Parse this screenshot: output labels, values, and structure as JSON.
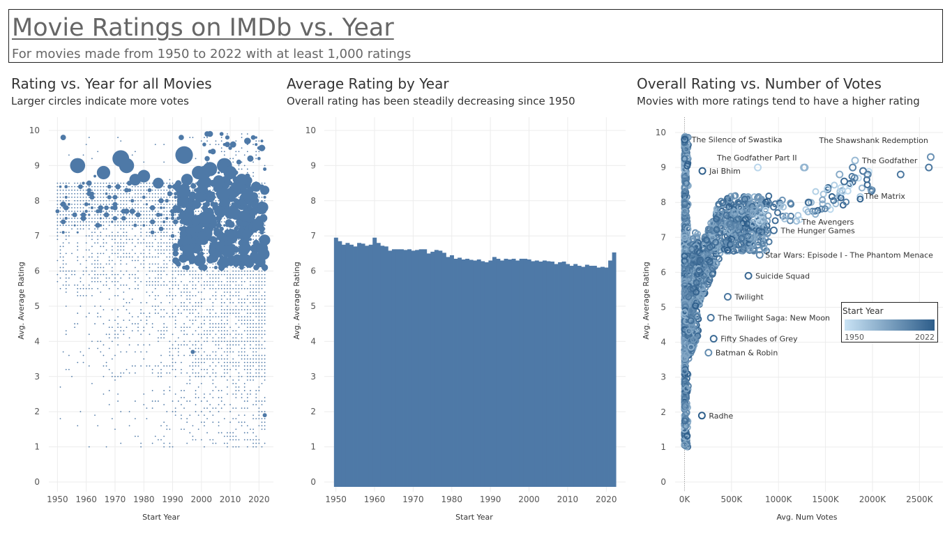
{
  "header": {
    "title": "Movie Ratings on IMDb vs. Year",
    "subtitle": "For movies made from 1950 to 2022 with at least 1,000 ratings"
  },
  "panels": {
    "scatter_year": {
      "title": "Rating vs. Year for all Movies",
      "subtitle": "Larger circles indicate more votes"
    },
    "avg_by_year": {
      "title": "Average Rating by Year",
      "subtitle": "Overall rating has been steadily decreasing since 1950"
    },
    "rating_votes": {
      "title": "Overall Rating vs. Number of Votes",
      "subtitle": "Movies with more ratings tend to have a higher rating"
    }
  },
  "legend": {
    "title": "Start Year",
    "min_label": "1950",
    "max_label": "2022"
  },
  "colors": {
    "bar": "#4e79a7",
    "point": "#4e79a7",
    "light": "#c9e3f5",
    "dark": "#2d5d8a",
    "grid": "#ececec"
  },
  "chart_data": [
    {
      "type": "scatter",
      "xlabel": "Start Year",
      "ylabel": "Avg. Average Rating",
      "xlim": [
        1947,
        2025
      ],
      "ylim": [
        0,
        10
      ],
      "xticks": [
        1950,
        1960,
        1970,
        1980,
        1990,
        2000,
        2010,
        2020
      ],
      "yticks": [
        0,
        1,
        2,
        3,
        4,
        5,
        6,
        7,
        8,
        9,
        10
      ],
      "encoding": "circle size = number of votes",
      "highlights": [
        {
          "x": 1957,
          "y": 9.0
        },
        {
          "x": 1966,
          "y": 8.8
        },
        {
          "x": 1972,
          "y": 9.2
        },
        {
          "x": 1974,
          "y": 9.0
        },
        {
          "x": 1994,
          "y": 9.3
        },
        {
          "x": 1999,
          "y": 8.8
        },
        {
          "x": 2001,
          "y": 8.8
        },
        {
          "x": 2003,
          "y": 8.9
        },
        {
          "x": 2008,
          "y": 9.0
        },
        {
          "x": 2010,
          "y": 8.8
        },
        {
          "x": 2014,
          "y": 8.6
        },
        {
          "x": 2012,
          "y": 8.4
        },
        {
          "x": 1977,
          "y": 8.6
        },
        {
          "x": 1980,
          "y": 8.7
        },
        {
          "x": 1985,
          "y": 8.5
        },
        {
          "x": 1995,
          "y": 8.6
        },
        {
          "x": 2006,
          "y": 8.5
        },
        {
          "x": 2019,
          "y": 8.4
        },
        {
          "x": 2022,
          "y": 8.3
        },
        {
          "x": 2022,
          "y": 1.9
        },
        {
          "x": 1997,
          "y": 3.7
        }
      ]
    },
    {
      "type": "bar",
      "xlabel": "Start Year",
      "ylabel": "Avg. Average Rating",
      "xlim": [
        1947,
        2025
      ],
      "ylim": [
        0,
        10
      ],
      "xticks": [
        1950,
        1960,
        1970,
        1980,
        1990,
        2000,
        2010,
        2020
      ],
      "yticks": [
        0,
        1,
        2,
        3,
        4,
        5,
        6,
        7,
        8,
        9,
        10
      ],
      "x": [
        1950,
        1951,
        1952,
        1953,
        1954,
        1955,
        1956,
        1957,
        1958,
        1959,
        1960,
        1961,
        1962,
        1963,
        1964,
        1965,
        1966,
        1967,
        1968,
        1969,
        1970,
        1971,
        1972,
        1973,
        1974,
        1975,
        1976,
        1977,
        1978,
        1979,
        1980,
        1981,
        1982,
        1983,
        1984,
        1985,
        1986,
        1987,
        1988,
        1989,
        1990,
        1991,
        1992,
        1993,
        1994,
        1995,
        1996,
        1997,
        1998,
        1999,
        2000,
        2001,
        2002,
        2003,
        2004,
        2005,
        2006,
        2007,
        2008,
        2009,
        2010,
        2011,
        2012,
        2013,
        2014,
        2015,
        2016,
        2017,
        2018,
        2019,
        2020,
        2021,
        2022
      ],
      "values": [
        6.95,
        6.85,
        6.75,
        6.8,
        6.75,
        6.7,
        6.8,
        6.78,
        6.72,
        6.75,
        6.95,
        6.8,
        6.72,
        6.7,
        6.58,
        6.62,
        6.62,
        6.62,
        6.6,
        6.62,
        6.58,
        6.6,
        6.62,
        6.62,
        6.5,
        6.55,
        6.6,
        6.58,
        6.52,
        6.4,
        6.45,
        6.35,
        6.38,
        6.33,
        6.35,
        6.32,
        6.3,
        6.33,
        6.28,
        6.25,
        6.3,
        6.4,
        6.35,
        6.3,
        6.35,
        6.33,
        6.35,
        6.3,
        6.35,
        6.35,
        6.33,
        6.28,
        6.3,
        6.27,
        6.3,
        6.28,
        6.27,
        6.2,
        6.25,
        6.27,
        6.2,
        6.15,
        6.2,
        6.15,
        6.12,
        6.18,
        6.15,
        6.15,
        6.1,
        6.12,
        6.1,
        6.3,
        6.53
      ]
    },
    {
      "type": "scatter",
      "xlabel": "Avg. Num Votes",
      "ylabel": "Avg. Average Rating",
      "xlim": [
        -100,
        2750
      ],
      "ylim": [
        0,
        10
      ],
      "xticks": [
        0,
        500,
        1000,
        1500,
        2000,
        2500
      ],
      "xtick_labels": [
        "0K",
        "500K",
        "1000K",
        "1500K",
        "2000K",
        "2500K"
      ],
      "yticks": [
        0,
        1,
        2,
        3,
        4,
        5,
        6,
        7,
        8,
        9,
        10
      ],
      "color_encoding": "Start Year 1950–2022",
      "labeled_points": [
        {
          "label": "The Shawshank Redemption",
          "x": 2620,
          "y": 9.3,
          "year": 1994
        },
        {
          "label": "The Godfather",
          "x": 1815,
          "y": 9.2,
          "year": 1972
        },
        {
          "label": "The Matrix",
          "x": 1810,
          "y": 8.7,
          "year": 1999
        },
        {
          "label": "The Avengers",
          "x": 1320,
          "y": 8.0,
          "year": 2012
        },
        {
          "label": "The Hunger Games",
          "x": 950,
          "y": 7.2,
          "year": 2012
        },
        {
          "label": "Star Wars: Episode I - The Phantom Menace",
          "x": 800,
          "y": 6.5,
          "year": 1999
        },
        {
          "label": "Suicide Squad",
          "x": 680,
          "y": 5.9,
          "year": 2016
        },
        {
          "label": "Twilight",
          "x": 460,
          "y": 5.3,
          "year": 2008
        },
        {
          "label": "The Twilight Saga: New Moon",
          "x": 280,
          "y": 4.7,
          "year": 2009
        },
        {
          "label": "Fifty Shades of Grey",
          "x": 310,
          "y": 4.1,
          "year": 2015
        },
        {
          "label": "Batman & Robin",
          "x": 255,
          "y": 3.7,
          "year": 1997
        },
        {
          "label": "Radhe",
          "x": 185,
          "y": 1.9,
          "year": 2021
        },
        {
          "label": "The Silence of Swastika",
          "x": 2,
          "y": 9.8,
          "year": 2021
        },
        {
          "label": "The Godfather Part II",
          "x": 1270,
          "y": 9.0,
          "year": 1974
        },
        {
          "label": "Jai Bhim",
          "x": 190,
          "y": 8.9,
          "year": 2021
        }
      ],
      "other_points": [
        {
          "x": 2600,
          "y": 9.0,
          "year": 2008
        },
        {
          "x": 1900,
          "y": 8.9,
          "year": 2010
        },
        {
          "x": 1950,
          "y": 8.8,
          "year": 2003
        },
        {
          "x": 2300,
          "y": 8.8,
          "year": 2008
        },
        {
          "x": 1790,
          "y": 9.0,
          "year": 2001
        },
        {
          "x": 1700,
          "y": 8.6,
          "year": 2014
        },
        {
          "x": 1650,
          "y": 8.8,
          "year": 1980
        },
        {
          "x": 1280,
          "y": 9.0,
          "year": 1974
        },
        {
          "x": 780,
          "y": 9.0,
          "year": 1957
        }
      ]
    }
  ]
}
